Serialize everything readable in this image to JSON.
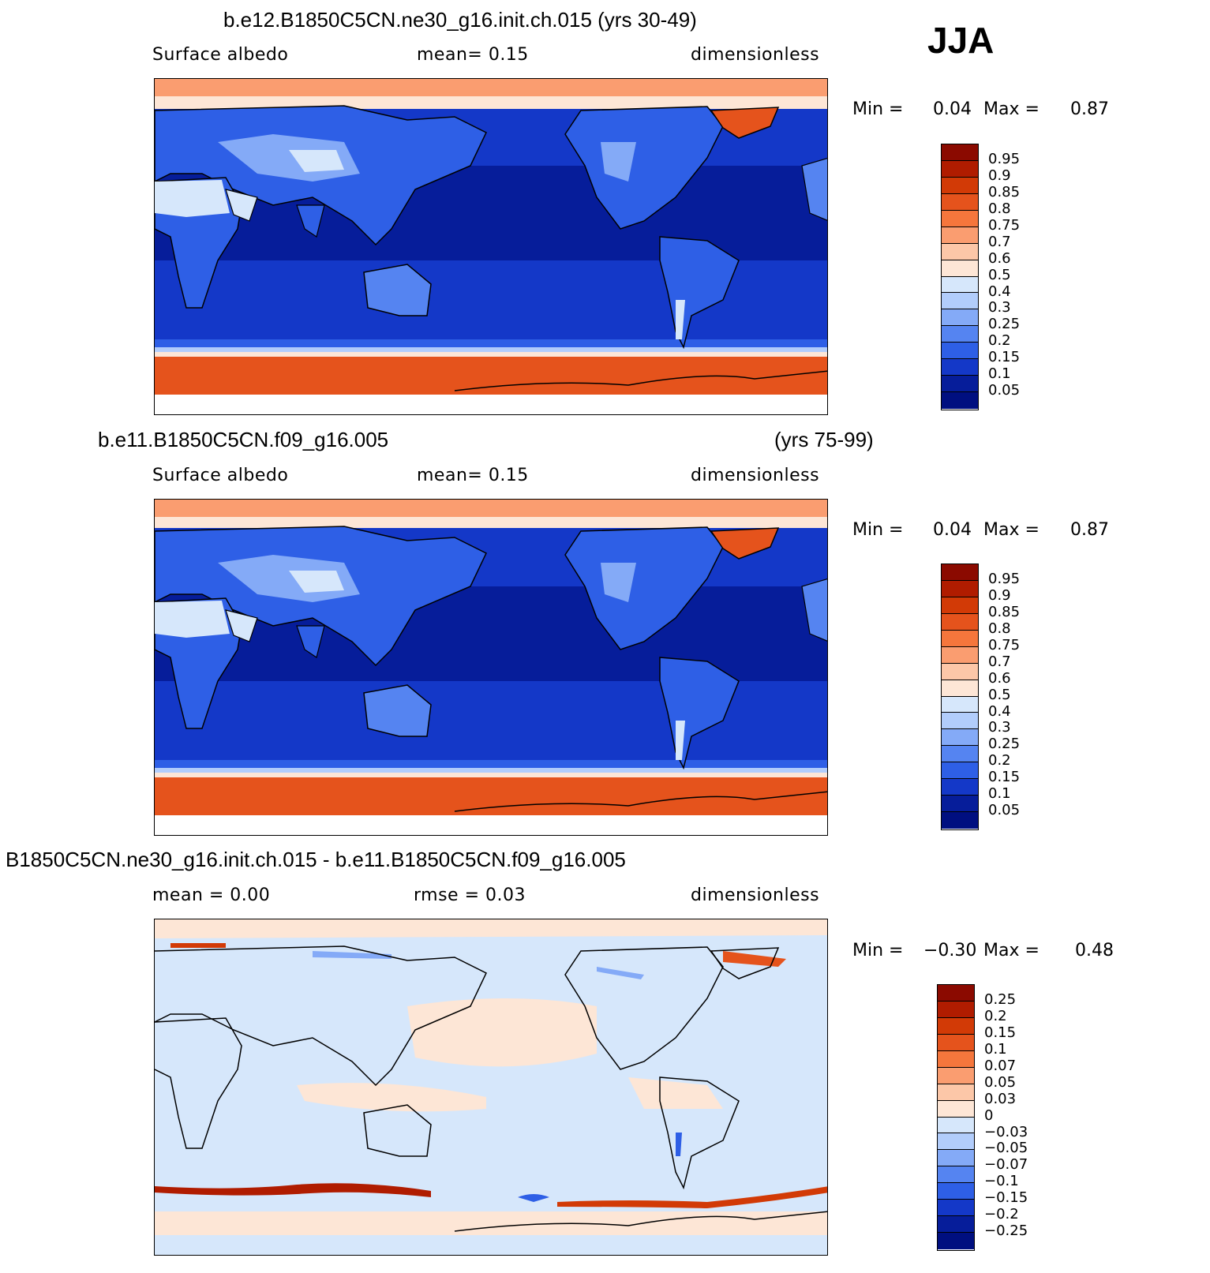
{
  "season": "JJA",
  "panels": [
    {
      "title": "b.e12.B1850C5CN.ne30_g16.init.ch.015 (yrs 30-49)",
      "title_right": "",
      "left_text": "Surface  albedo",
      "mid_text": "mean=     0.15",
      "right_text": "dimensionless",
      "min_label": "Min  =",
      "min_value": "0.04",
      "max_label": "Max  =",
      "max_value": "0.87",
      "colorbar_labels": [
        "0.95",
        "0.9",
        "0.85",
        "0.8",
        "0.75",
        "0.7",
        "0.6",
        "0.5",
        "0.4",
        "0.3",
        "0.25",
        "0.2",
        "0.15",
        "0.1",
        "0.05"
      ]
    },
    {
      "title": "b.e11.B1850C5CN.f09_g16.005",
      "title_right": "(yrs 75-99)",
      "left_text": "Surface  albedo",
      "mid_text": "mean=     0.15",
      "right_text": "dimensionless",
      "min_label": "Min  =",
      "min_value": "0.04",
      "max_label": "Max  =",
      "max_value": "0.87",
      "colorbar_labels": [
        "0.95",
        "0.9",
        "0.85",
        "0.8",
        "0.75",
        "0.7",
        "0.6",
        "0.5",
        "0.4",
        "0.3",
        "0.25",
        "0.2",
        "0.15",
        "0.1",
        "0.05"
      ]
    },
    {
      "title": "B1850C5CN.ne30_g16.init.ch.015 - b.e11.B1850C5CN.f09_g16.005",
      "title_right": "",
      "left_text": "mean  =      0.00",
      "mid_text": "rmse  =      0.03",
      "right_text": "dimensionless",
      "min_label": "Min  =",
      "min_value": "−0.30",
      "max_label": "Max  =",
      "max_value": "0.48",
      "colorbar_labels": [
        "0.25",
        "0.2",
        "0.15",
        "0.1",
        "0.07",
        "0.05",
        "0.03",
        "0",
        "−0.03",
        "−0.05",
        "−0.07",
        "−0.1",
        "−0.15",
        "−0.2",
        "−0.25"
      ]
    }
  ],
  "colors": {
    "scale": [
      "#8b0a00",
      "#b01c00",
      "#d23a06",
      "#e5531c",
      "#f5763c",
      "#fa9d70",
      "#fcc7a8",
      "#fde6d6",
      "#d6e7fb",
      "#b2cdfb",
      "#84aaf7",
      "#5584f1",
      "#2e5fe6",
      "#1438c8",
      "#061d9a",
      "#000f80"
    ],
    "ocean_deep": "#061d9a",
    "ocean_mid": "#1438c8",
    "land": "#2e5fe6",
    "polar": "#e5531c",
    "diff_pos": "#fde6d6",
    "diff_neg": "#d6e7fb"
  }
}
